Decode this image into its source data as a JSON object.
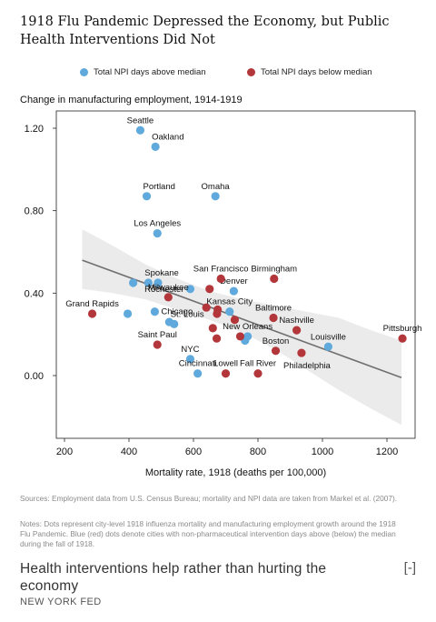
{
  "title": "1918 Flu Pandemic Depressed the Economy, but Public Health Interventions Did Not",
  "legend": [
    {
      "label": "Total NPI days above median",
      "color": "#5fa9dc"
    },
    {
      "label": "Total NPI days below median",
      "color": "#b2363a"
    }
  ],
  "subtitle": "Change in manufacturing employment, 1914-1919",
  "notes": {
    "sources": "Sources: Employment data from U.S. Census Bureau; mortality and NPI data are taken from Markel et al. (2007).",
    "notes": "Notes: Dots represent city-level 1918 influenza mortality and manufacturing employment growth around the 1918 Flu Pandemic. Blue (red) dots denote cities with non-pharmaceutical intervention days above (below) the median during the fall of 1918."
  },
  "caption": "Health interventions help rather than hurting the economy",
  "toggle": "[-]",
  "source_label": "NEW YORK FED",
  "chart_data": {
    "type": "scatter",
    "xlabel": "Mortality rate, 1918 (deaths per 100,000)",
    "ylabel": "",
    "xlim": [
      160,
      1270
    ],
    "ylim": [
      -0.15,
      1.3
    ],
    "x_ticks": [
      200,
      400,
      600,
      800,
      1000,
      1200
    ],
    "y_ticks": [
      0.0,
      0.4,
      0.8,
      1.2
    ],
    "y_tick_labels": [
      "0.00",
      "0.40",
      "0.80",
      "1.20"
    ],
    "grid": false,
    "fit_line": {
      "x": [
        255,
        1245
      ],
      "y": [
        0.56,
        -0.01
      ]
    },
    "confidence_band": {
      "x": [
        255,
        350,
        450,
        550,
        650,
        750,
        850,
        950,
        1050,
        1150,
        1245
      ],
      "upper": [
        0.71,
        0.63,
        0.54,
        0.47,
        0.41,
        0.37,
        0.34,
        0.31,
        0.28,
        0.22,
        0.17
      ],
      "lower": [
        0.42,
        0.4,
        0.37,
        0.32,
        0.27,
        0.21,
        0.13,
        0.03,
        -0.07,
        -0.16,
        -0.24
      ]
    },
    "series": [
      {
        "name": "Total NPI days above median",
        "color": "#5fa9dc",
        "points": [
          {
            "x": 435,
            "y": 1.19,
            "label": "Seattle",
            "anchor": "above"
          },
          {
            "x": 482,
            "y": 1.11,
            "label": "Oakland",
            "anchor": "above-right"
          },
          {
            "x": 455,
            "y": 0.87,
            "label": "Portland",
            "anchor": "above-right"
          },
          {
            "x": 668,
            "y": 0.87,
            "label": "Omaha",
            "anchor": "above"
          },
          {
            "x": 488,
            "y": 0.69,
            "label": "Los Angeles",
            "anchor": "above"
          },
          {
            "x": 413,
            "y": 0.45,
            "label": "",
            "anchor": ""
          },
          {
            "x": 460,
            "y": 0.45,
            "label": "Spokane",
            "anchor": "above-right"
          },
          {
            "x": 490,
            "y": 0.45,
            "label": "",
            "anchor": ""
          },
          {
            "x": 590,
            "y": 0.42,
            "label": "Rochester",
            "anchor": "left"
          },
          {
            "x": 725,
            "y": 0.41,
            "label": "Denver",
            "anchor": "above"
          },
          {
            "x": 396,
            "y": 0.3,
            "label": "",
            "anchor": ""
          },
          {
            "x": 480,
            "y": 0.31,
            "label": "Chicago",
            "anchor": "right"
          },
          {
            "x": 712,
            "y": 0.31,
            "label": "Kansas City",
            "anchor": "above"
          },
          {
            "x": 525,
            "y": 0.26,
            "label": "",
            "anchor": ""
          },
          {
            "x": 540,
            "y": 0.25,
            "label": "St. Louis",
            "anchor": "above-right"
          },
          {
            "x": 768,
            "y": 0.19,
            "label": "New Orleans",
            "anchor": "above"
          },
          {
            "x": 760,
            "y": 0.17,
            "label": "",
            "anchor": ""
          },
          {
            "x": 1018,
            "y": 0.14,
            "label": "Louisville",
            "anchor": "above"
          },
          {
            "x": 590,
            "y": 0.08,
            "label": "NYC",
            "anchor": "above"
          },
          {
            "x": 613,
            "y": 0.01,
            "label": "Cincinnati",
            "anchor": "above"
          }
        ]
      },
      {
        "name": "Total NPI days below median",
        "color": "#b2363a",
        "points": [
          {
            "x": 286,
            "y": 0.3,
            "label": "Grand Rapids",
            "anchor": "above"
          },
          {
            "x": 685,
            "y": 0.47,
            "label": "San Francisco",
            "anchor": "above"
          },
          {
            "x": 850,
            "y": 0.47,
            "label": "Birmingham",
            "anchor": "above"
          },
          {
            "x": 650,
            "y": 0.42,
            "label": "",
            "anchor": ""
          },
          {
            "x": 522,
            "y": 0.38,
            "label": "Milwaukee",
            "anchor": "above"
          },
          {
            "x": 640,
            "y": 0.33,
            "label": "",
            "anchor": ""
          },
          {
            "x": 675,
            "y": 0.32,
            "label": "",
            "anchor": ""
          },
          {
            "x": 673,
            "y": 0.3,
            "label": "",
            "anchor": ""
          },
          {
            "x": 728,
            "y": 0.27,
            "label": "",
            "anchor": ""
          },
          {
            "x": 848,
            "y": 0.28,
            "label": "Baltimore",
            "anchor": "above"
          },
          {
            "x": 920,
            "y": 0.22,
            "label": "Nashville",
            "anchor": "above"
          },
          {
            "x": 660,
            "y": 0.23,
            "label": "",
            "anchor": ""
          },
          {
            "x": 745,
            "y": 0.19,
            "label": "",
            "anchor": ""
          },
          {
            "x": 672,
            "y": 0.18,
            "label": "",
            "anchor": ""
          },
          {
            "x": 488,
            "y": 0.15,
            "label": "Saint Paul",
            "anchor": "above"
          },
          {
            "x": 855,
            "y": 0.12,
            "label": "Boston",
            "anchor": "above"
          },
          {
            "x": 935,
            "y": 0.11,
            "label": "Philadelphia",
            "anchor": "below"
          },
          {
            "x": 1248,
            "y": 0.18,
            "label": "Pittsburgh",
            "anchor": "above"
          },
          {
            "x": 700,
            "y": 0.01,
            "label": "Lowell",
            "anchor": "above"
          },
          {
            "x": 800,
            "y": 0.01,
            "label": "Fall River",
            "anchor": "above"
          }
        ]
      }
    ]
  }
}
